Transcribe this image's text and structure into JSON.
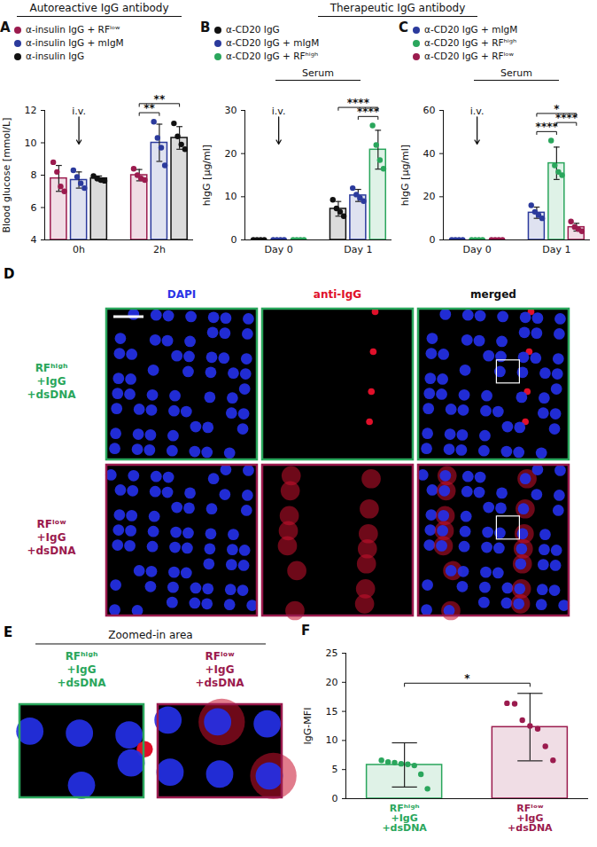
{
  "figure": {
    "headers": [
      {
        "text": "Autoreactive IgG antibody",
        "panels": [
          "A"
        ]
      },
      {
        "text": "Therapeutic IgG antibody",
        "panels": [
          "B",
          "C"
        ]
      }
    ]
  },
  "chart_data": [
    {
      "type": "bar",
      "panel": "A",
      "y_label": "Blood glucose [mmol/L]",
      "categories": [
        "0h",
        "2h"
      ],
      "series": [
        {
          "name": "α-insulin IgG + RFˡᵒʷ",
          "color": "#9b1b4e",
          "values": [
            7.8,
            8.0
          ],
          "errors": [
            0.8,
            0.35
          ],
          "points": [
            [
              8.8,
              8.2,
              7.3,
              7.0
            ],
            [
              8.4,
              8.0,
              7.8,
              7.7
            ]
          ]
        },
        {
          "name": "α-insulin IgG + mIgM",
          "color": "#2b3a9c",
          "values": [
            7.7,
            10.0
          ],
          "errors": [
            0.5,
            1.15
          ],
          "points": [
            [
              8.3,
              7.9,
              7.5,
              7.2
            ],
            [
              11.3,
              10.3,
              9.7,
              8.6
            ]
          ]
        },
        {
          "name": "α-insulin IgG",
          "color": "#111111",
          "values": [
            7.8,
            10.3
          ],
          "errors": [
            0.15,
            0.7
          ],
          "points": [
            [
              7.95,
              7.8,
              7.7,
              7.65
            ],
            [
              11.2,
              10.4,
              9.9,
              9.6
            ]
          ]
        }
      ],
      "ylim": [
        4,
        12
      ],
      "yticks": [
        4,
        6,
        8,
        10,
        12
      ],
      "legend": "top",
      "annotations": [
        {
          "text": "i.v.",
          "category": "0h"
        }
      ],
      "significance": [
        {
          "category": "2h",
          "from": "α-insulin IgG + RFˡᵒʷ",
          "to": "α-insulin IgG + mIgM",
          "label": "**"
        },
        {
          "category": "2h",
          "from": "α-insulin IgG + RFˡᵒʷ",
          "to": "α-insulin IgG",
          "label": "**"
        }
      ]
    },
    {
      "type": "bar",
      "panel": "B",
      "subtitle": "Serum",
      "y_label": "hIgG [µg/ml]",
      "categories": [
        "Day 0",
        "Day 1"
      ],
      "series": [
        {
          "name": "α-CD20 IgG",
          "color": "#111111",
          "values": [
            0,
            7.2
          ],
          "errors": [
            0,
            1.7
          ],
          "points": [
            [
              0,
              0,
              0,
              0
            ],
            [
              9.3,
              7.3,
              6.5,
              5.5
            ]
          ]
        },
        {
          "name": "α-CD20 IgG + mIgM",
          "color": "#2b3a9c",
          "values": [
            0,
            10.3
          ],
          "errors": [
            0,
            1.4
          ],
          "points": [
            [
              0,
              0,
              0,
              0
            ],
            [
              12.0,
              10.5,
              9.7,
              9.0
            ]
          ]
        },
        {
          "name": "α-CD20 IgG + RFʰⁱᵍʰ",
          "color": "#2aa65c",
          "values": [
            0,
            20.9
          ],
          "errors": [
            0,
            4.5
          ],
          "points": [
            [
              0,
              0,
              0,
              0
            ],
            [
              26.5,
              22.0,
              18.5,
              16.5
            ]
          ]
        }
      ],
      "ylim": [
        0,
        30
      ],
      "yticks": [
        0,
        10,
        20,
        30
      ],
      "legend": "top",
      "annotations": [
        {
          "text": "i.v.",
          "category": "Day 0"
        }
      ],
      "significance": [
        {
          "category": "Day 1",
          "from": "α-CD20 IgG + mIgM",
          "to": "α-CD20 IgG + RFʰⁱᵍʰ",
          "label": "****"
        },
        {
          "category": "Day 1",
          "from": "α-CD20 IgG",
          "to": "α-CD20 IgG + RFʰⁱᵍʰ",
          "label": "****"
        }
      ]
    },
    {
      "type": "bar",
      "panel": "C",
      "subtitle": "Serum",
      "y_label": "hIgG [µg/ml]",
      "categories": [
        "Day 0",
        "Day 1"
      ],
      "series": [
        {
          "name": "α-CD20 IgG + mIgM",
          "color": "#2b3a9c",
          "values": [
            0,
            12.6
          ],
          "errors": [
            0,
            2.6
          ],
          "points": [
            [
              0,
              0,
              0,
              0
            ],
            [
              16.0,
              13.0,
              11.5,
              10.0
            ]
          ]
        },
        {
          "name": "α-CD20 IgG + RFʰⁱᵍʰ",
          "color": "#2aa65c",
          "values": [
            0,
            35.5
          ],
          "errors": [
            0,
            7.5
          ],
          "points": [
            [
              0,
              0,
              0,
              0
            ],
            [
              46.0,
              34.5,
              31.5,
              30.0
            ]
          ]
        },
        {
          "name": "α-CD20 IgG + RFˡᵒʷ",
          "color": "#9b1b4e",
          "values": [
            0,
            5.9
          ],
          "errors": [
            0,
            1.8
          ],
          "points": [
            [
              0,
              0,
              0,
              0
            ],
            [
              8.5,
              6.0,
              5.0,
              4.0
            ]
          ]
        }
      ],
      "ylim": [
        0,
        60
      ],
      "yticks": [
        0,
        20,
        40,
        60
      ],
      "legend": "top",
      "annotations": [
        {
          "text": "i.v.",
          "category": "Day 0"
        }
      ],
      "significance": [
        {
          "category": "Day 1",
          "from": "α-CD20 IgG + mIgM",
          "to": "α-CD20 IgG + RFʰⁱᵍʰ",
          "label": "****"
        },
        {
          "category": "Day 1",
          "from": "α-CD20 IgG + RFʰⁱᵍʰ",
          "to": "α-CD20 IgG + RFˡᵒʷ",
          "label": "****"
        },
        {
          "category": "Day 1",
          "from": "α-CD20 IgG + mIgM",
          "to": "α-CD20 IgG + RFˡᵒʷ",
          "label": "*"
        }
      ]
    },
    {
      "type": "bar",
      "panel": "F",
      "y_label": "IgG-MFI",
      "categories": [
        "RFʰⁱᵍʰ\n+IgG\n+dsDNA",
        "RFˡᵒʷ\n+IgG\n+dsDNA"
      ],
      "values": [
        5.8,
        12.3
      ],
      "errors": [
        3.8,
        5.8
      ],
      "colors": [
        "#2aa65c",
        "#9b1b4e"
      ],
      "points": [
        [
          6.6,
          6.3,
          6.2,
          6.0,
          5.9,
          5.7,
          4.2,
          1.7
        ],
        [
          16.4,
          16.3,
          13.5,
          12.5,
          12.0,
          9.0,
          6.6
        ]
      ],
      "ylim": [
        0,
        25
      ],
      "yticks": [
        0,
        5,
        10,
        15,
        20,
        25
      ],
      "significance": [
        {
          "from": "RFʰⁱᵍʰ\n+IgG\n+dsDNA",
          "to": "RFˡᵒʷ\n+IgG\n+dsDNA",
          "label": "*"
        }
      ]
    }
  ],
  "images": {
    "D": {
      "panel": "D",
      "columns": [
        {
          "text": "DAPI",
          "color": "#2b35e6"
        },
        {
          "text": "anti-IgG",
          "color": "#e0102a"
        },
        {
          "text": "merged",
          "color": "#111111"
        }
      ],
      "rows": [
        {
          "label": [
            "RFʰⁱᵍʰ",
            "+IgG",
            "+dsDNA"
          ],
          "color": "#2aa65c"
        },
        {
          "label": [
            "RFˡᵒʷ",
            "+IgG",
            "+dsDNA"
          ],
          "color": "#9b1b4e"
        }
      ]
    },
    "E": {
      "panel": "E",
      "title": "Zoomed-in area",
      "boxes": [
        {
          "label": [
            "RFʰⁱᵍʰ",
            "+IgG",
            "+dsDNA"
          ],
          "color": "#2aa65c"
        },
        {
          "label": [
            "RFˡᵒʷ",
            "+IgG",
            "+dsDNA"
          ],
          "color": "#9b1b4e"
        }
      ]
    }
  }
}
